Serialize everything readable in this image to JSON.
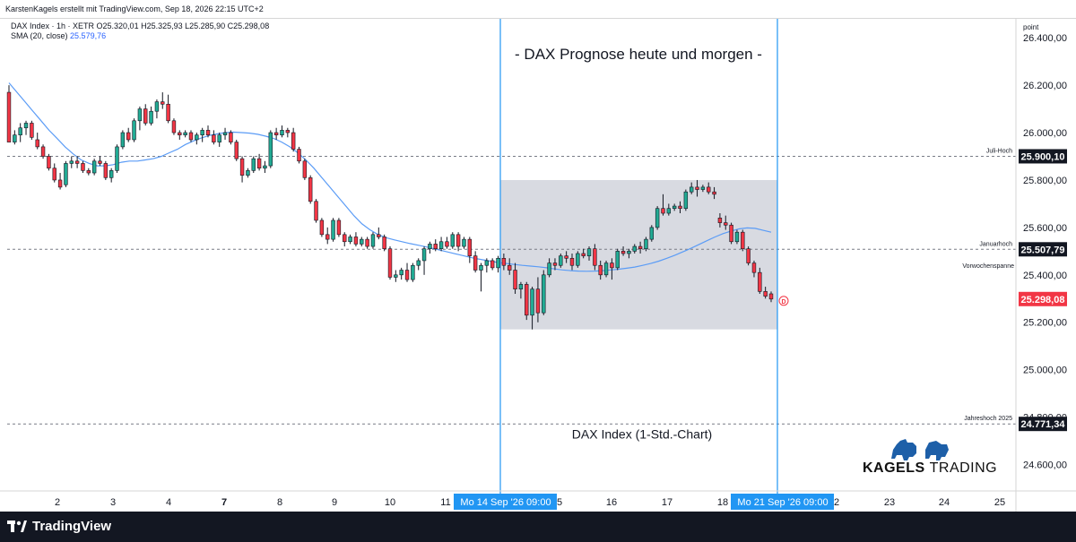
{
  "topbar": {
    "attribution": "KarstenKagels erstellt mit TradingView.com, Sep 18, 2026 22:15 UTC+2"
  },
  "legend": {
    "line1": "DAX Index · 1h · XETR  O25.320,01  H25.325,93  L25.285,90  C25.298,08",
    "sma_label": "SMA (20, close)",
    "sma_value": "25.579,76"
  },
  "chart_data": {
    "type": "candlestick",
    "title": "- DAX Prognose heute und morgen -",
    "subtitle": "DAX Index (1-Std.-Chart)",
    "y_axis_unit": "point",
    "y_ticks": [
      24600,
      24800,
      25000,
      25200,
      25400,
      25600,
      25800,
      26000,
      26200,
      26400
    ],
    "y_tick_labels": [
      "24.600,00",
      "24.800,00",
      "25.000,00",
      "25.200,00",
      "25.400,00",
      "25.600,00",
      "25.800,00",
      "26.000,00",
      "26.200,00",
      "26.400,00"
    ],
    "ylim": [
      24500,
      26480
    ],
    "x_tick_labels": [
      "2",
      "3",
      "4",
      "7",
      "8",
      "9",
      "10",
      "11",
      "15",
      "16",
      "17",
      "18",
      "22",
      "23",
      "24",
      "25"
    ],
    "x_cursor_labels": [
      "Mo 14 Sep '26   09:00",
      "Mo 21 Sep '26   09:00"
    ],
    "horizontal_levels": [
      {
        "label": "Juli-Hoch",
        "value": 25900.1,
        "value_label": "25.900,10"
      },
      {
        "label": "Januarhoch",
        "value": 25507.79,
        "value_label": "25.507,79"
      },
      {
        "label": "Vorwochenspanne",
        "value": null,
        "value_label": ""
      },
      {
        "label": "Jahreshoch 2025",
        "value": 24771.34,
        "value_label": "24.771,34"
      }
    ],
    "current_price_label": "25.298,08",
    "current_price": 25298.08,
    "range_box": {
      "from": "Mo 14 Sep '26 09:00",
      "to": "Mo 21 Sep '26 09:00",
      "high": 25800,
      "low": 25170
    },
    "dividend_marker": "D",
    "candles": [
      [
        26170,
        26200,
        25960,
        25960
      ],
      [
        25960,
        26010,
        25950,
        25990
      ],
      [
        25990,
        26040,
        25960,
        26020
      ],
      [
        26020,
        26050,
        25990,
        26040
      ],
      [
        26040,
        26050,
        25970,
        25980
      ],
      [
        25970,
        26000,
        25930,
        25940
      ],
      [
        25940,
        25950,
        25890,
        25900
      ],
      [
        25900,
        25910,
        25840,
        25850
      ],
      [
        25850,
        25870,
        25790,
        25800
      ],
      [
        25800,
        25830,
        25760,
        25770
      ],
      [
        25780,
        25880,
        25770,
        25870
      ],
      [
        25870,
        25900,
        25850,
        25880
      ],
      [
        25880,
        25900,
        25850,
        25870
      ],
      [
        25870,
        25880,
        25830,
        25840
      ],
      [
        25840,
        25850,
        25820,
        25830
      ],
      [
        25830,
        25890,
        25820,
        25880
      ],
      [
        25880,
        25900,
        25860,
        25870
      ],
      [
        25870,
        25880,
        25800,
        25810
      ],
      [
        25810,
        25850,
        25790,
        25840
      ],
      [
        25840,
        25950,
        25830,
        25940
      ],
      [
        25940,
        26010,
        25930,
        26000
      ],
      [
        26000,
        26020,
        25960,
        25970
      ],
      [
        25970,
        26060,
        25960,
        26050
      ],
      [
        26050,
        26110,
        26010,
        26100
      ],
      [
        26100,
        26120,
        26030,
        26040
      ],
      [
        26040,
        26110,
        26030,
        26090
      ],
      [
        26090,
        26140,
        26060,
        26130
      ],
      [
        26130,
        26170,
        26100,
        26120
      ],
      [
        26120,
        26160,
        26040,
        26050
      ],
      [
        26050,
        26060,
        25990,
        26000
      ],
      [
        26000,
        26010,
        25970,
        25990
      ],
      [
        25990,
        26010,
        25980,
        26000
      ],
      [
        26000,
        26010,
        25960,
        25970
      ],
      [
        25970,
        26000,
        25950,
        25990
      ],
      [
        25990,
        26020,
        25960,
        26010
      ],
      [
        26010,
        26030,
        25980,
        25990
      ],
      [
        25990,
        26010,
        25950,
        25960
      ],
      [
        25960,
        26000,
        25940,
        25990
      ],
      [
        25990,
        26020,
        25970,
        26000
      ],
      [
        26000,
        26010,
        25950,
        25960
      ],
      [
        25960,
        25970,
        25880,
        25890
      ],
      [
        25890,
        25900,
        25790,
        25820
      ],
      [
        25820,
        25850,
        25810,
        25840
      ],
      [
        25840,
        25900,
        25830,
        25890
      ],
      [
        25890,
        25910,
        25840,
        25850
      ],
      [
        25850,
        25880,
        25830,
        25860
      ],
      [
        25860,
        26010,
        25850,
        26000
      ],
      [
        26000,
        26020,
        25970,
        25990
      ],
      [
        25990,
        26030,
        25980,
        26010
      ],
      [
        26010,
        26020,
        25980,
        26000
      ],
      [
        26000,
        26020,
        25920,
        25930
      ],
      [
        25930,
        25940,
        25870,
        25880
      ],
      [
        25880,
        25890,
        25800,
        25810
      ],
      [
        25810,
        25820,
        25700,
        25710
      ],
      [
        25710,
        25720,
        25620,
        25630
      ],
      [
        25630,
        25640,
        25560,
        25570
      ],
      [
        25570,
        25600,
        25530,
        25550
      ],
      [
        25550,
        25640,
        25540,
        25630
      ],
      [
        25630,
        25640,
        25560,
        25570
      ],
      [
        25570,
        25580,
        25520,
        25540
      ],
      [
        25540,
        25570,
        25530,
        25560
      ],
      [
        25560,
        25580,
        25520,
        25530
      ],
      [
        25530,
        25560,
        25520,
        25550
      ],
      [
        25550,
        25560,
        25510,
        25520
      ],
      [
        25520,
        25580,
        25510,
        25570
      ],
      [
        25570,
        25600,
        25550,
        25560
      ],
      [
        25560,
        25570,
        25500,
        25510
      ],
      [
        25510,
        25520,
        25380,
        25390
      ],
      [
        25390,
        25420,
        25370,
        25400
      ],
      [
        25400,
        25430,
        25380,
        25420
      ],
      [
        25420,
        25450,
        25370,
        25380
      ],
      [
        25380,
        25450,
        25370,
        25440
      ],
      [
        25440,
        25470,
        25420,
        25460
      ],
      [
        25460,
        25520,
        25400,
        25510
      ],
      [
        25510,
        25540,
        25490,
        25530
      ],
      [
        25530,
        25550,
        25500,
        25510
      ],
      [
        25510,
        25560,
        25500,
        25540
      ],
      [
        25540,
        25560,
        25510,
        25520
      ],
      [
        25520,
        25580,
        25510,
        25570
      ],
      [
        25570,
        25580,
        25500,
        25520
      ],
      [
        25520,
        25560,
        25510,
        25550
      ],
      [
        25550,
        25560,
        25450,
        25480
      ],
      [
        25480,
        25500,
        25410,
        25420
      ],
      [
        25420,
        25450,
        25330,
        25440
      ],
      [
        25440,
        25470,
        25410,
        25460
      ],
      [
        25460,
        25470,
        25420,
        25430
      ],
      [
        25430,
        25480,
        25410,
        25470
      ],
      [
        25470,
        25490,
        25420,
        25440
      ],
      [
        25440,
        25470,
        25400,
        25420
      ],
      [
        25420,
        25450,
        25320,
        25340
      ],
      [
        25340,
        25370,
        25300,
        25360
      ],
      [
        25360,
        25370,
        25210,
        25230
      ],
      [
        25230,
        25350,
        25170,
        25340
      ],
      [
        25340,
        25390,
        25200,
        25240
      ],
      [
        25240,
        25420,
        25230,
        25400
      ],
      [
        25400,
        25470,
        25390,
        25450
      ],
      [
        25450,
        25470,
        25420,
        25440
      ],
      [
        25440,
        25490,
        25430,
        25480
      ],
      [
        25480,
        25500,
        25450,
        25470
      ],
      [
        25470,
        25490,
        25420,
        25440
      ],
      [
        25440,
        25500,
        25430,
        25490
      ],
      [
        25490,
        25510,
        25470,
        25480
      ],
      [
        25480,
        25520,
        25460,
        25510
      ],
      [
        25510,
        25530,
        25420,
        25440
      ],
      [
        25440,
        25460,
        25380,
        25400
      ],
      [
        25400,
        25460,
        25390,
        25450
      ],
      [
        25450,
        25470,
        25380,
        25430
      ],
      [
        25430,
        25510,
        25420,
        25500
      ],
      [
        25500,
        25520,
        25480,
        25490
      ],
      [
        25490,
        25510,
        25470,
        25500
      ],
      [
        25500,
        25530,
        25490,
        25520
      ],
      [
        25520,
        25540,
        25490,
        25510
      ],
      [
        25510,
        25560,
        25500,
        25550
      ],
      [
        25550,
        25610,
        25540,
        25600
      ],
      [
        25600,
        25690,
        25590,
        25680
      ],
      [
        25680,
        25740,
        25650,
        25660
      ],
      [
        25660,
        25700,
        25650,
        25680
      ],
      [
        25680,
        25700,
        25670,
        25690
      ],
      [
        25690,
        25710,
        25660,
        25680
      ],
      [
        25680,
        25760,
        25670,
        25750
      ],
      [
        25750,
        25790,
        25740,
        25770
      ],
      [
        25770,
        25800,
        25730,
        25760
      ],
      [
        25760,
        25780,
        25750,
        25770
      ],
      [
        25770,
        25790,
        25740,
        25750
      ],
      [
        25750,
        25770,
        25720,
        25740
      ],
      [
        25640,
        25660,
        25600,
        25620
      ],
      [
        25620,
        25650,
        25590,
        25610
      ],
      [
        25610,
        25620,
        25530,
        25540
      ],
      [
        25540,
        25590,
        25530,
        25580
      ],
      [
        25580,
        25590,
        25500,
        25510
      ],
      [
        25510,
        25520,
        25440,
        25450
      ],
      [
        25450,
        25460,
        25390,
        25410
      ],
      [
        25410,
        25430,
        25320,
        25330
      ],
      [
        25330,
        25350,
        25300,
        25310
      ],
      [
        25320,
        25330,
        25285,
        25298
      ]
    ],
    "sma": [
      26210,
      26170,
      26130,
      26090,
      26050,
      26010,
      25975,
      25940,
      25910,
      25885,
      25870,
      25860,
      25860,
      25865,
      25875,
      25880,
      25880,
      25885,
      25890,
      25900,
      25915,
      25930,
      25950,
      25965,
      25978,
      25988,
      25995,
      26000,
      26002,
      26000,
      25998,
      25993,
      25985,
      25975,
      25960,
      25940,
      25915,
      25885,
      25850,
      25810,
      25770,
      25730,
      25690,
      25650,
      25615,
      25590,
      25570,
      25557,
      25548,
      25540,
      25532,
      25525,
      25518,
      25510,
      25502,
      25494,
      25486,
      25478,
      25470,
      25464,
      25458,
      25452,
      25448,
      25444,
      25440,
      25437,
      25434,
      25430,
      25425,
      25421,
      25418,
      25416,
      25415,
      25416,
      25418,
      25421,
      25424,
      25428,
      25433,
      25440,
      25448,
      25458,
      25470,
      25483,
      25497,
      25512,
      25528,
      25544,
      25560,
      25574,
      25585,
      25594,
      25598,
      25596,
      25588,
      25580
    ],
    "sma_start_index": 0
  },
  "branding": {
    "tradingview": "TradingView",
    "kagels_bold": "KAGELS",
    "kagels_light": "TRADING"
  },
  "colors": {
    "up": "#22ab94",
    "down": "#f23645",
    "sma": "#5b9cf6",
    "range_box": "#d1d4dc",
    "cursor_line": "#2196f3",
    "cursor_label_bg": "#2196f3",
    "level_line": "#787b86",
    "axis_label_bg": "#131722",
    "current_price_bg": "#f23645"
  }
}
